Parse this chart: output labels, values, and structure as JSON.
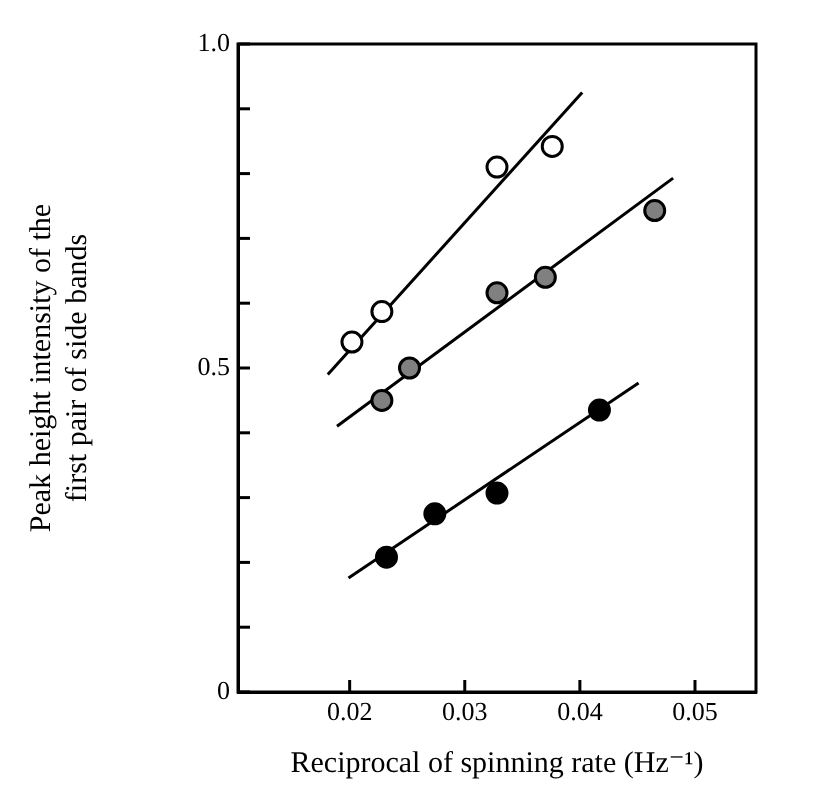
{
  "chart_data": {
    "type": "scatter",
    "xlabel": "Reciprocal of spinning rate (Hz⁻¹)",
    "ylabel": "Peak height intensity of the\nfirst pair of side bands",
    "xlim": [
      0.0103,
      0.0553
    ],
    "xticks": [
      0.02,
      0.03,
      0.04,
      0.05
    ],
    "ylim": [
      0,
      1
    ],
    "yticks": [
      0,
      {
        "value": 0.1,
        "label": null
      },
      {
        "value": 0.2,
        "label": null
      },
      {
        "value": 0.3,
        "label": null
      },
      {
        "value": 0.4,
        "label": null
      },
      0.5,
      {
        "value": 0.6,
        "label": null
      },
      {
        "value": 0.7,
        "label": null
      },
      {
        "value": 0.8,
        "label": null
      },
      {
        "value": 0.9,
        "label": null
      },
      {
        "value": 1,
        "label": "1.0"
      }
    ],
    "grid": false,
    "legend": false,
    "marker": "circle",
    "series": [
      {
        "color": "#ffffff",
        "x": [
          0.0202,
          0.0228,
          0.0328,
          0.0376
        ],
        "values": [
          0.54,
          0.587,
          0.81,
          0.842
        ]
      },
      {
        "color": "#808080",
        "x": [
          0.0228,
          0.0252,
          0.0328,
          0.037,
          0.0465
        ],
        "values": [
          0.45,
          0.5,
          0.616,
          0.64,
          0.743
        ]
      },
      {
        "color": "#000000",
        "x": [
          0.0232,
          0.0274,
          0.0328,
          0.0417
        ],
        "values": [
          0.208,
          0.275,
          0.307,
          0.435
        ]
      },
      {
        "type": "line",
        "color": "#000000",
        "marker": "none",
        "x": [
          0.0181,
          0.0402
        ],
        "values": [
          0.49,
          0.925
        ]
      },
      {
        "type": "line",
        "color": "#000000",
        "marker": "none",
        "x": [
          0.0189,
          0.0481
        ],
        "values": [
          0.41,
          0.793
        ]
      },
      {
        "type": "line",
        "color": "#000000",
        "marker": "none",
        "x": [
          0.0199,
          0.0451
        ],
        "values": [
          0.176,
          0.477
        ]
      }
    ]
  }
}
